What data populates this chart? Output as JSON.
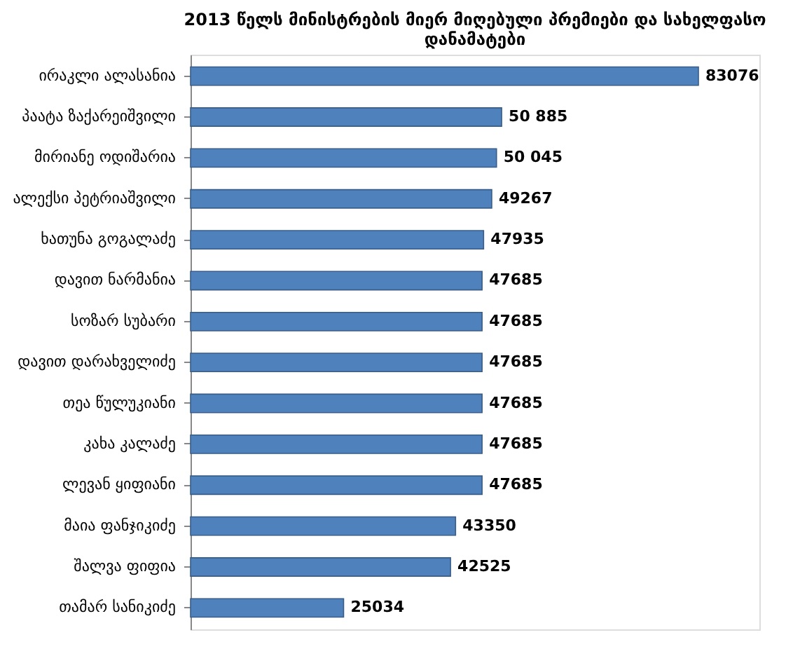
{
  "chart_data": {
    "type": "bar",
    "orientation": "horizontal",
    "title": "2013 წელს მინისტრების მიერ მიღებული პრემიები და სახელფასო დანამატები",
    "categories": [
      "ირაკლი ალასანია",
      "პაატა ზაქარეიშვილი",
      "მირიანე ოდიშარია",
      "ალექსი პეტრიაშვილი",
      "ხათუნა გოგალაძე",
      "დავით ნარმანია",
      "სოზარ სუბარი",
      "დავით დარახველიძე",
      "თეა წულუკიანი",
      "კახა კალაძე",
      "ლევან ყიფიანი",
      "მაია ფანჯიკიძე",
      "შალვა ფიფია",
      "თამარ სანიკიძე"
    ],
    "values": [
      83076,
      50885,
      50045,
      49267,
      47935,
      47685,
      47685,
      47685,
      47685,
      47685,
      47685,
      43350,
      42525,
      25034
    ],
    "value_labels": [
      "83076",
      "50 885",
      "50 045",
      "49267",
      "47935",
      "47685",
      "47685",
      "47685",
      "47685",
      "47685",
      "47685",
      "43350",
      "42525",
      "25034"
    ],
    "color": "#4f81bd",
    "grid": false
  }
}
